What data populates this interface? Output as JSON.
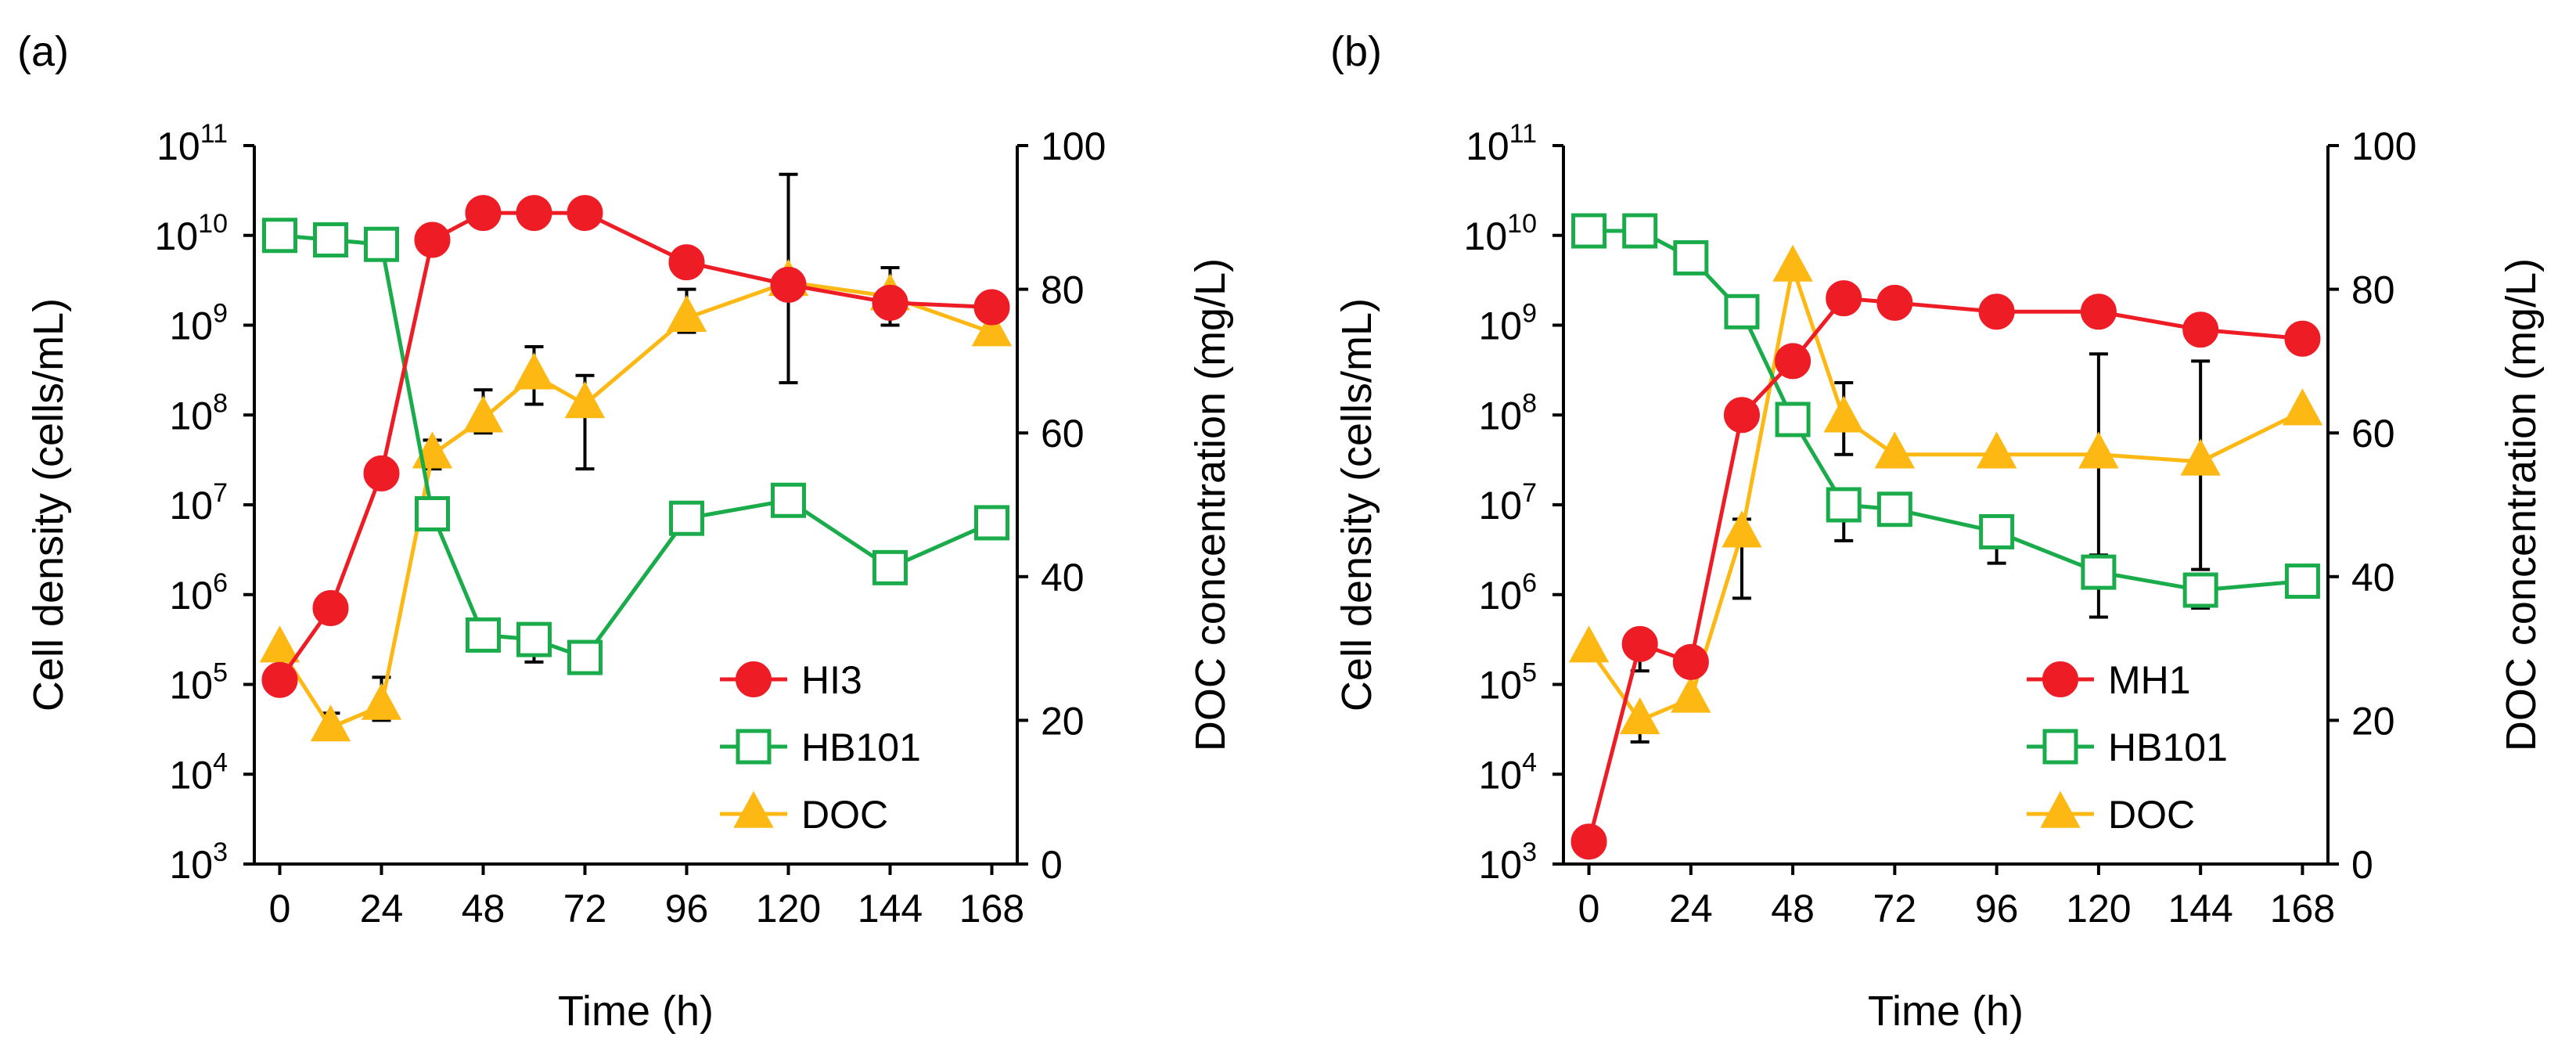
{
  "chart_data": [
    {
      "type": "line",
      "panel_label": "(a)",
      "xlabel": "Time (h)",
      "ylabel_left": "Cell density (cells/mL)",
      "ylabel_right": "DOC concentration (mg/L)",
      "x_ticks": [
        0,
        24,
        48,
        72,
        96,
        120,
        144,
        168
      ],
      "xlim": [
        -6,
        174
      ],
      "y_left_scale": "log10",
      "y_left_ticks": [
        {
          "exp": 3,
          "base": "10",
          "power": "3"
        },
        {
          "exp": 4,
          "base": "10",
          "power": "4"
        },
        {
          "exp": 5,
          "base": "10",
          "power": "5"
        },
        {
          "exp": 6,
          "base": "10",
          "power": "6"
        },
        {
          "exp": 7,
          "base": "10",
          "power": "7"
        },
        {
          "exp": 8,
          "base": "10",
          "power": "8"
        },
        {
          "exp": 9,
          "base": "10",
          "power": "9"
        },
        {
          "exp": 10,
          "base": "10",
          "power": "10"
        },
        {
          "exp": 11,
          "base": "10",
          "power": "11"
        }
      ],
      "y_left_lim_exp": [
        3,
        11
      ],
      "y_right_ticks": [
        0,
        20,
        40,
        60,
        80,
        100
      ],
      "y_right_lim": [
        0,
        100
      ],
      "legend_position": "bottom-right",
      "series": [
        {
          "name": "HI3",
          "axis": "left",
          "marker": "circle",
          "color": "#ee1c25",
          "x": [
            0,
            12,
            24,
            36,
            48,
            60,
            72,
            96,
            120,
            144,
            168
          ],
          "log10_values": [
            5.05,
            5.85,
            7.35,
            9.95,
            10.25,
            10.25,
            10.25,
            9.7,
            9.45,
            9.25,
            9.2
          ],
          "err_up": [
            0,
            0,
            0,
            0,
            0,
            0,
            0,
            0,
            0,
            0,
            0
          ],
          "err_down": [
            0,
            0,
            0,
            0,
            0,
            0,
            0,
            0,
            0,
            0,
            0
          ]
        },
        {
          "name": "HB101",
          "axis": "left",
          "marker": "square",
          "color": "#1aab4b",
          "x": [
            0,
            12,
            24,
            36,
            48,
            60,
            72,
            96,
            120,
            144,
            168
          ],
          "log10_values": [
            10.0,
            9.95,
            9.9,
            6.9,
            5.55,
            5.5,
            5.3,
            6.85,
            7.05,
            6.3,
            6.8
          ],
          "err_up": [
            0,
            0,
            0,
            0,
            0,
            0,
            0,
            0,
            0,
            0,
            0
          ],
          "err_down": [
            0,
            0,
            0,
            0,
            0.15,
            0.25,
            0.15,
            0,
            0,
            0,
            0
          ]
        },
        {
          "name": "DOC",
          "axis": "right",
          "marker": "triangle",
          "color": "#fdb813",
          "x": [
            0,
            12,
            24,
            36,
            48,
            60,
            72,
            96,
            120,
            144,
            168
          ],
          "values": [
            30,
            19,
            22,
            57,
            62,
            68,
            64,
            76,
            81,
            79,
            74
          ],
          "err_up": [
            0,
            2,
            4,
            2,
            4,
            4,
            4,
            4,
            15,
            4,
            0
          ],
          "err_down": [
            0,
            0,
            2,
            2,
            2,
            4,
            9,
            2,
            14,
            4,
            0
          ]
        }
      ]
    },
    {
      "type": "line",
      "panel_label": "(b)",
      "xlabel": "Time (h)",
      "ylabel_left": "Cell density (cells/mL)",
      "ylabel_right": "DOC concentration (mg/L)",
      "x_ticks": [
        0,
        24,
        48,
        72,
        96,
        120,
        144,
        168
      ],
      "xlim": [
        -6,
        174
      ],
      "y_left_scale": "log10",
      "y_left_ticks": [
        {
          "exp": 3,
          "base": "10",
          "power": "3"
        },
        {
          "exp": 4,
          "base": "10",
          "power": "4"
        },
        {
          "exp": 5,
          "base": "10",
          "power": "5"
        },
        {
          "exp": 6,
          "base": "10",
          "power": "6"
        },
        {
          "exp": 7,
          "base": "10",
          "power": "7"
        },
        {
          "exp": 8,
          "base": "10",
          "power": "8"
        },
        {
          "exp": 9,
          "base": "10",
          "power": "9"
        },
        {
          "exp": 10,
          "base": "10",
          "power": "10"
        },
        {
          "exp": 11,
          "base": "10",
          "power": "11"
        }
      ],
      "y_left_lim_exp": [
        3,
        11
      ],
      "y_right_ticks": [
        0,
        20,
        40,
        60,
        80,
        100
      ],
      "y_right_lim": [
        0,
        100
      ],
      "legend_position": "bottom-right",
      "series": [
        {
          "name": "MH1",
          "axis": "left",
          "marker": "circle",
          "color": "#ee1c25",
          "x": [
            0,
            12,
            24,
            36,
            48,
            60,
            72,
            96,
            120,
            144,
            168
          ],
          "log10_values": [
            3.25,
            5.45,
            5.25,
            8.0,
            8.6,
            9.3,
            9.25,
            9.15,
            9.15,
            8.95,
            8.85
          ],
          "err_up": [
            0,
            0,
            0,
            0,
            0,
            0,
            0,
            0,
            0,
            0,
            0
          ],
          "err_down": [
            0,
            0.3,
            0,
            0,
            0,
            0,
            0,
            0,
            0,
            0,
            0
          ]
        },
        {
          "name": "HB101",
          "axis": "left",
          "marker": "square",
          "color": "#1aab4b",
          "x": [
            0,
            12,
            24,
            36,
            48,
            60,
            72,
            96,
            120,
            144,
            168
          ],
          "log10_values": [
            10.05,
            10.05,
            9.75,
            9.15,
            7.95,
            7.0,
            6.95,
            6.7,
            6.25,
            6.05,
            6.15
          ],
          "err_up": [
            0,
            0,
            0,
            0,
            0,
            0,
            0,
            0,
            0,
            0,
            0
          ],
          "err_down": [
            0,
            0,
            0,
            0,
            0,
            0.4,
            0,
            0.35,
            0.5,
            0.2,
            0
          ]
        },
        {
          "name": "DOC",
          "axis": "right",
          "marker": "triangle",
          "color": "#fdb813",
          "x": [
            0,
            12,
            24,
            36,
            48,
            60,
            72,
            96,
            120,
            144,
            168
          ],
          "values": [
            30,
            20,
            23,
            46,
            83,
            62,
            57,
            57,
            57,
            56,
            63
          ],
          "err_up": [
            0,
            0,
            0,
            2,
            0,
            5,
            0,
            0,
            14,
            14,
            0
          ],
          "err_down": [
            0,
            3,
            0,
            9,
            0,
            5,
            0,
            0,
            14,
            15,
            0
          ]
        }
      ]
    }
  ]
}
